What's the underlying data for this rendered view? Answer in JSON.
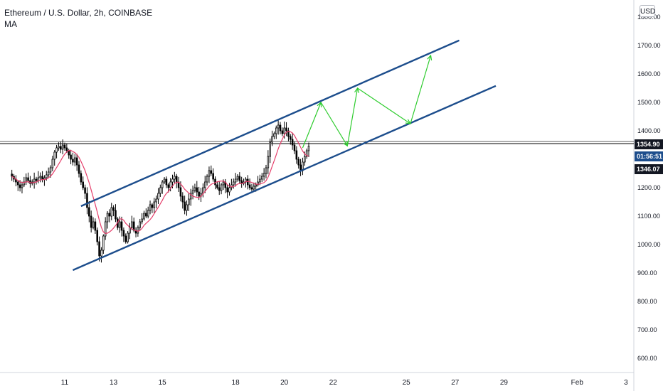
{
  "header": {
    "title": "Ethereum / U.S. Dollar, 2h, COINBASE",
    "indicator": "MA",
    "currency_button": "USD"
  },
  "colors": {
    "up": "#ffffff",
    "down": "#000000",
    "candle_border": "#000000",
    "ma_line": "#e53f6b",
    "channel": "#1c4d8c",
    "projection": "#2ecc2e",
    "horizontal_line": "#000000",
    "axis_text": "#131722",
    "label_bg": "#131722",
    "timer_bg": "#1c4d8c"
  },
  "chart_data": {
    "type": "candlestick",
    "title": "Ethereum / U.S. Dollar, 2h, COINBASE",
    "indicator": "MA",
    "xlabel": "",
    "ylabel": "",
    "yscale": "linear",
    "ylim": [
      560,
      1840
    ],
    "grid": false,
    "y_ticks": [
      "1800.00",
      "1700.00",
      "1600.00",
      "1500.00",
      "1400.00",
      "1300.00",
      "1200.00",
      "1100.00",
      "1000.00",
      "900.00",
      "800.00",
      "700.00",
      "600.00"
    ],
    "x_ticks": [
      "11",
      "13",
      "15",
      "18",
      "20",
      "22",
      "25",
      "27",
      "29",
      "Feb",
      "3"
    ],
    "price_labels": {
      "resistance": "1354.90",
      "countdown": "01:56:51",
      "last_price": "1346.07"
    },
    "horizontal_level": 1354.9,
    "channel_upper": [
      [
        "Jan 11 16:00",
        1135
      ],
      [
        "Jan 27 04:00",
        1718
      ]
    ],
    "channel_lower": [
      [
        "Jan 11 08:00",
        910
      ],
      [
        "Jan 28 16:00",
        1558
      ]
    ],
    "projection_path": [
      [
        "Jan 20 18:00",
        1340
      ],
      [
        "Jan 21 12:00",
        1500
      ],
      [
        "Jan 22 14:00",
        1347
      ],
      [
        "Jan 23 00:00",
        1550
      ],
      [
        "Jan 25 04:00",
        1425
      ],
      [
        "Jan 26 00:00",
        1665
      ]
    ],
    "candle_start": "Jan 8 20:00",
    "candle_interval_hours": 2,
    "candles_close": [
      1240,
      1230,
      1220,
      1210,
      1200,
      1210,
      1220,
      1235,
      1225,
      1215,
      1220,
      1230,
      1225,
      1235,
      1240,
      1230,
      1235,
      1245,
      1255,
      1270,
      1300,
      1325,
      1340,
      1345,
      1335,
      1350,
      1340,
      1330,
      1315,
      1300,
      1290,
      1305,
      1280,
      1250,
      1220,
      1200,
      1180,
      1130,
      1100,
      1060,
      1080,
      1050,
      1010,
      960,
      980,
      1030,
      1080,
      1110,
      1100,
      1130,
      1120,
      1090,
      1060,
      1080,
      1050,
      1030,
      1010,
      1040,
      1060,
      1080,
      1050,
      1040,
      1060,
      1080,
      1090,
      1110,
      1100,
      1120,
      1140,
      1130,
      1150,
      1160,
      1180,
      1200,
      1220,
      1230,
      1210,
      1200,
      1220,
      1230,
      1240,
      1220,
      1200,
      1170,
      1150,
      1120,
      1140,
      1160,
      1180,
      1190,
      1200,
      1185,
      1170,
      1180,
      1200,
      1220,
      1240,
      1260,
      1250,
      1230,
      1210,
      1200,
      1190,
      1210,
      1220,
      1200,
      1185,
      1200,
      1210,
      1220,
      1230,
      1240,
      1225,
      1215,
      1220,
      1230,
      1210,
      1200,
      1195,
      1205,
      1210,
      1220,
      1230,
      1240,
      1250,
      1270,
      1310,
      1360,
      1380,
      1390,
      1410,
      1420,
      1400,
      1390,
      1410,
      1400,
      1380,
      1370,
      1350,
      1330,
      1300,
      1280,
      1260,
      1290,
      1310,
      1330,
      1346
    ]
  }
}
